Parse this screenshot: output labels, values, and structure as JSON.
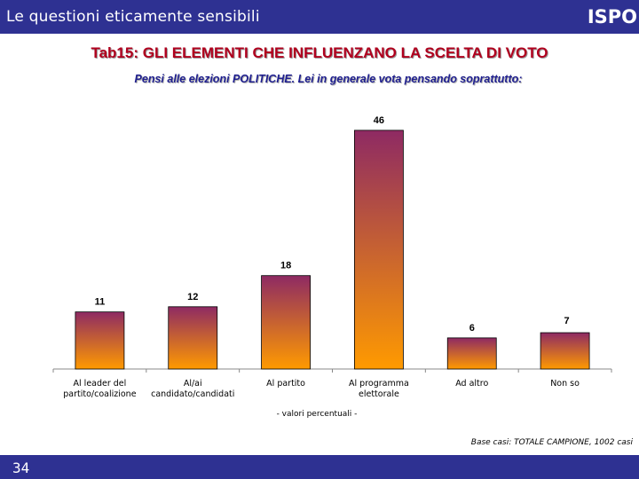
{
  "header": {
    "title": "Le questioni eticamente sensibili",
    "logo": "ISPO"
  },
  "title": "Tab15: GLI ELEMENTI CHE INFLUENZANO LA SCELTA DI VOTO",
  "subtitle": "Pensi alle elezioni POLITICHE. Lei in generale vota pensando soprattutto:",
  "footnote": "- valori percentuali -",
  "base": "Base casi: TOTALE CAMPIONE, 1002 casi",
  "page_number": "34",
  "colors": {
    "header_bg": "#2e3192",
    "bar_top": "#8e2a63",
    "bar_bottom": "#ff9a00",
    "title": "#b0001e",
    "subtitle": "#1f1f8f"
  },
  "chart_data": {
    "type": "bar",
    "categories": [
      [
        "Al leader del",
        "partito/coalizione"
      ],
      [
        "Al/ai",
        "candidato/candidati"
      ],
      [
        "Al partito"
      ],
      [
        "Al programma",
        "elettorale"
      ],
      [
        "Ad altro"
      ],
      [
        "Non so"
      ]
    ],
    "values": [
      11,
      12,
      18,
      46,
      6,
      7
    ],
    "ylim": [
      0,
      50
    ],
    "grid": false,
    "legend": false
  }
}
